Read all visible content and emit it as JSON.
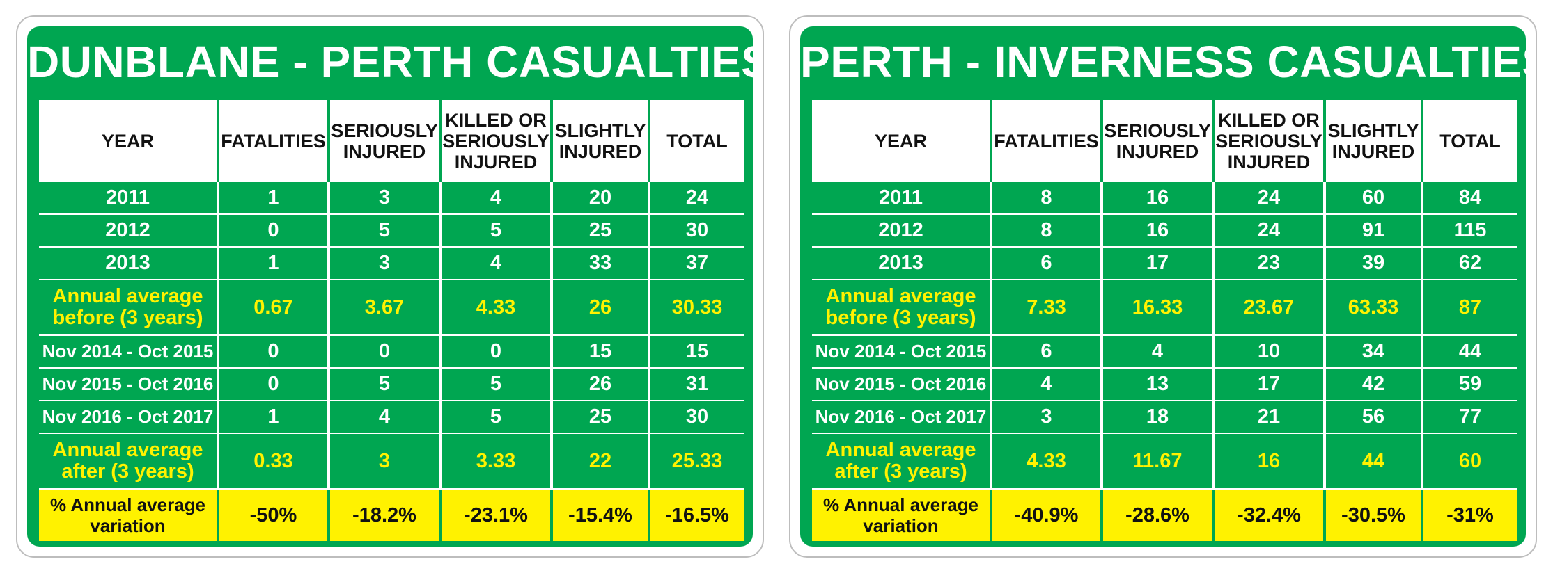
{
  "colors": {
    "green": "#00a651",
    "yellow": "#fff200",
    "white": "#ffffff"
  },
  "chart_data": [
    {
      "type": "table",
      "title": "DUNBLANE - PERTH CASUALTIES",
      "columns": [
        "YEAR",
        "FATALITIES",
        "SERIOUSLY INJURED",
        "KILLED OR SERIOUSLY INJURED",
        "SLIGHTLY INJURED",
        "TOTAL"
      ],
      "years": [
        {
          "label": "2011",
          "values": [
            "1",
            "3",
            "4",
            "20",
            "24"
          ]
        },
        {
          "label": "2012",
          "values": [
            "0",
            "5",
            "5",
            "25",
            "30"
          ]
        },
        {
          "label": "2013",
          "values": [
            "1",
            "3",
            "4",
            "33",
            "37"
          ]
        }
      ],
      "avg_before": {
        "label": "Annual average before (3 years)",
        "values": [
          "0.67",
          "3.67",
          "4.33",
          "26",
          "30.33"
        ]
      },
      "periods": [
        {
          "label": "Nov 2014 - Oct 2015",
          "values": [
            "0",
            "0",
            "0",
            "15",
            "15"
          ]
        },
        {
          "label": "Nov 2015 - Oct 2016",
          "values": [
            "0",
            "5",
            "5",
            "26",
            "31"
          ]
        },
        {
          "label": "Nov 2016 - Oct 2017",
          "values": [
            "1",
            "4",
            "5",
            "25",
            "30"
          ]
        }
      ],
      "avg_after": {
        "label": "Annual average after (3 years)",
        "values": [
          "0.33",
          "3",
          "3.33",
          "22",
          "25.33"
        ]
      },
      "variation": {
        "label": "% Annual average variation",
        "values": [
          "-50%",
          "-18.2%",
          "-23.1%",
          "-15.4%",
          "-16.5%"
        ]
      }
    },
    {
      "type": "table",
      "title": "PERTH - INVERNESS CASUALTIES",
      "columns": [
        "YEAR",
        "FATALITIES",
        "SERIOUSLY INJURED",
        "KILLED OR SERIOUSLY INJURED",
        "SLIGHTLY INJURED",
        "TOTAL"
      ],
      "years": [
        {
          "label": "2011",
          "values": [
            "8",
            "16",
            "24",
            "60",
            "84"
          ]
        },
        {
          "label": "2012",
          "values": [
            "8",
            "16",
            "24",
            "91",
            "115"
          ]
        },
        {
          "label": "2013",
          "values": [
            "6",
            "17",
            "23",
            "39",
            "62"
          ]
        }
      ],
      "avg_before": {
        "label": "Annual average before (3 years)",
        "values": [
          "7.33",
          "16.33",
          "23.67",
          "63.33",
          "87"
        ]
      },
      "periods": [
        {
          "label": "Nov 2014 - Oct 2015",
          "values": [
            "6",
            "4",
            "10",
            "34",
            "44"
          ]
        },
        {
          "label": "Nov 2015 - Oct 2016",
          "values": [
            "4",
            "13",
            "17",
            "42",
            "59"
          ]
        },
        {
          "label": "Nov 2016 - Oct 2017",
          "values": [
            "3",
            "18",
            "21",
            "56",
            "77"
          ]
        }
      ],
      "avg_after": {
        "label": "Annual average after (3 years)",
        "values": [
          "4.33",
          "11.67",
          "16",
          "44",
          "60"
        ]
      },
      "variation": {
        "label": "% Annual average variation",
        "values": [
          "-40.9%",
          "-28.6%",
          "-32.4%",
          "-30.5%",
          "-31%"
        ]
      }
    }
  ]
}
